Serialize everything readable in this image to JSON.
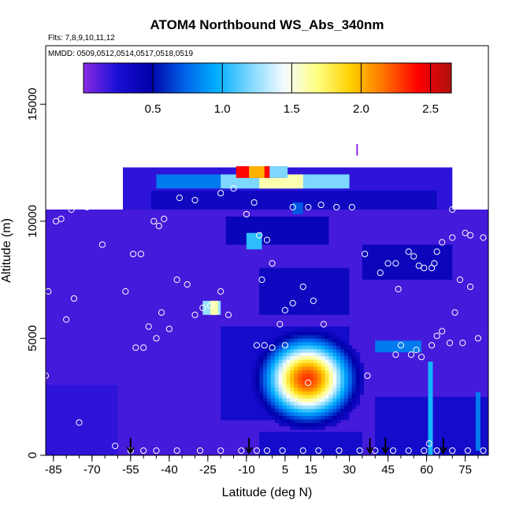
{
  "chart_data": {
    "type": "heatmap",
    "title": "ATOM4 Northbound WS_Abs_340nm",
    "subtitle_flights": "Flts: 7,8,9,10,11,12",
    "subtitle_dates": "MMDD: 0509,0512,0514,0517,0518,0519",
    "xlabel": "Latitude (deg N)",
    "ylabel": "Altitude (m)",
    "xlim": [
      -88,
      84
    ],
    "ylim": [
      0,
      17500
    ],
    "x_ticks": [
      -85,
      -70,
      -55,
      -40,
      -25,
      -10,
      5,
      15,
      30,
      45,
      60,
      75
    ],
    "y_ticks": [
      0,
      5000,
      10000,
      15000
    ],
    "colorbar": {
      "range": [
        0,
        2.65
      ],
      "ticks": [
        0.5,
        1.0,
        1.5,
        2.0,
        2.5
      ],
      "tick_labels": [
        "0.5",
        "1.0",
        "1.5",
        "2.0",
        "2.5"
      ],
      "colors": [
        "#8a2be2",
        "#1a0fd6",
        "#0000a8",
        "#0060e8",
        "#00b0ff",
        "#80d8ff",
        "#f4fbff",
        "#ffff80",
        "#ffd000",
        "#ff7000",
        "#ff0000",
        "#b01010"
      ]
    },
    "regions": [
      {
        "lat": [
          -88,
          84
        ],
        "alt": [
          0,
          10500
        ],
        "value": 0.15
      },
      {
        "lat": [
          -58,
          70
        ],
        "alt": [
          10500,
          12300
        ],
        "value": 0.2
      },
      {
        "lat": [
          -47,
          64
        ],
        "alt": [
          10500,
          11300
        ],
        "value": 0.35
      },
      {
        "lat": [
          -18,
          22
        ],
        "alt": [
          9000,
          10200
        ],
        "value": 0.4
      },
      {
        "lat": [
          -5,
          30
        ],
        "alt": [
          6000,
          8000
        ],
        "value": 0.35
      },
      {
        "lat": [
          35,
          70
        ],
        "alt": [
          7500,
          9000
        ],
        "value": 0.38
      },
      {
        "lat": [
          -5,
          35
        ],
        "alt": [
          0,
          1000
        ],
        "value": 0.3
      },
      {
        "lat": [
          40,
          84
        ],
        "alt": [
          0,
          2500
        ],
        "value": 0.3
      },
      {
        "lat": [
          -20,
          30
        ],
        "alt": [
          1500,
          5500
        ],
        "value": 0.3
      },
      {
        "lat": [
          -88,
          -60
        ],
        "alt": [
          0,
          3000
        ],
        "value": 0.2
      }
    ],
    "features": [
      {
        "lat": [
          -45,
          30
        ],
        "alt": [
          11400,
          12000
        ],
        "value": 0.8
      },
      {
        "lat": [
          -20,
          30
        ],
        "alt": [
          11400,
          12000
        ],
        "value": 1.2
      },
      {
        "lat": [
          -5,
          12
        ],
        "alt": [
          11400,
          12000
        ],
        "value": 1.6
      },
      {
        "lat": [
          -14,
          5
        ],
        "alt": [
          11850,
          12350
        ],
        "value": 2.4
      },
      {
        "lat": [
          -9,
          -3
        ],
        "alt": [
          11850,
          12350
        ],
        "value": 2.0
      },
      {
        "lat": [
          -1,
          6
        ],
        "alt": [
          11850,
          12350
        ],
        "value": 1.2
      },
      {
        "lat": [
          -10,
          -4
        ],
        "alt": [
          8800,
          9500
        ],
        "value": 1.05
      },
      {
        "lat": [
          -27,
          -20
        ],
        "alt": [
          6000,
          6600
        ],
        "value": 1.25
      },
      {
        "lat": [
          -24,
          -21
        ],
        "alt": [
          6000,
          6600
        ],
        "value": 1.6
      },
      {
        "lat": [
          40,
          58
        ],
        "alt": [
          4400,
          4900
        ],
        "value": 0.8
      },
      {
        "lat": [
          8,
          12
        ],
        "alt": [
          10300,
          10800
        ],
        "value": 0.7
      }
    ],
    "blob": {
      "lat": 13,
      "alt": 3200,
      "sx": 11,
      "sy": 1100,
      "peak": 2.3
    },
    "vertical_streaks": [
      {
        "lat": 61.5,
        "alt": [
          0,
          4000
        ],
        "value": 1.0
      },
      {
        "lat": 80,
        "alt": [
          200,
          2700
        ],
        "value": 0.8
      }
    ],
    "flight_points": [
      [
        -87,
        7000
      ],
      [
        -84,
        10000
      ],
      [
        -82,
        10100
      ],
      [
        -88,
        3400
      ],
      [
        -80,
        5800
      ],
      [
        -77,
        6700
      ],
      [
        -75,
        1400
      ],
      [
        -78,
        10500
      ],
      [
        -72,
        10600
      ],
      [
        -67,
        11100
      ],
      [
        -64,
        11300
      ],
      [
        -60,
        11400
      ],
      [
        -66,
        9000
      ],
      [
        -57,
        7000
      ],
      [
        -54,
        8600
      ],
      [
        -51,
        8600
      ],
      [
        -53,
        4600
      ],
      [
        -50,
        4600
      ],
      [
        -48,
        5500
      ],
      [
        -45,
        5000
      ],
      [
        -43,
        6100
      ],
      [
        -40,
        5400
      ],
      [
        -37,
        7500
      ],
      [
        -33,
        7300
      ],
      [
        -30,
        6000
      ],
      [
        -27,
        6300
      ],
      [
        -24,
        6400
      ],
      [
        -20,
        7000
      ],
      [
        -17,
        6000
      ],
      [
        -44,
        9800
      ],
      [
        -42,
        10100
      ],
      [
        -46,
        10000
      ],
      [
        -36,
        11000
      ],
      [
        -30,
        10900
      ],
      [
        -20,
        11200
      ],
      [
        -15,
        11400
      ],
      [
        -10,
        10300
      ],
      [
        -7,
        10800
      ],
      [
        -5,
        9400
      ],
      [
        -2,
        9200
      ],
      [
        0,
        8200
      ],
      [
        -4,
        7500
      ],
      [
        -6,
        4700
      ],
      [
        -3,
        4700
      ],
      [
        0,
        4600
      ],
      [
        3,
        5600
      ],
      [
        5,
        6200
      ],
      [
        8,
        6500
      ],
      [
        12,
        7200
      ],
      [
        16,
        6600
      ],
      [
        20,
        5600
      ],
      [
        8,
        10600
      ],
      [
        14,
        10600
      ],
      [
        19,
        10700
      ],
      [
        25,
        10600
      ],
      [
        31,
        10600
      ],
      [
        36,
        8600
      ],
      [
        42,
        7800
      ],
      [
        45,
        8200
      ],
      [
        48,
        8200
      ],
      [
        49,
        7100
      ],
      [
        53,
        8700
      ],
      [
        55,
        8500
      ],
      [
        57,
        8100
      ],
      [
        59,
        8000
      ],
      [
        62,
        8000
      ],
      [
        63,
        8200
      ],
      [
        64,
        8700
      ],
      [
        66,
        9100
      ],
      [
        70,
        9300
      ],
      [
        75,
        9500
      ],
      [
        77,
        9400
      ],
      [
        82,
        9300
      ],
      [
        70,
        10500
      ],
      [
        72,
        10900
      ],
      [
        74,
        10800
      ],
      [
        73,
        7500
      ],
      [
        77,
        7200
      ],
      [
        80,
        5000
      ],
      [
        50,
        4700
      ],
      [
        48,
        4300
      ],
      [
        54,
        4300
      ],
      [
        56,
        4500
      ],
      [
        58,
        4200
      ],
      [
        62,
        4700
      ],
      [
        64,
        5100
      ],
      [
        66,
        5300
      ],
      [
        69,
        4800
      ],
      [
        71,
        6100
      ],
      [
        74,
        4800
      ],
      [
        37,
        3400
      ],
      [
        14,
        3100
      ],
      [
        5,
        4700
      ],
      [
        -55,
        200
      ],
      [
        -50,
        200
      ],
      [
        -45,
        200
      ],
      [
        -37,
        200
      ],
      [
        -28,
        200
      ],
      [
        -20,
        200
      ],
      [
        -12,
        200
      ],
      [
        -6,
        200
      ],
      [
        -2,
        200
      ],
      [
        4,
        200
      ],
      [
        12,
        200
      ],
      [
        18,
        200
      ],
      [
        26,
        200
      ],
      [
        34,
        200
      ],
      [
        40,
        200
      ],
      [
        47,
        200
      ],
      [
        53,
        200
      ],
      [
        59,
        200
      ],
      [
        61,
        500
      ],
      [
        64,
        200
      ],
      [
        70,
        200
      ],
      [
        76,
        200
      ],
      [
        82,
        200
      ],
      [
        -61,
        400
      ]
    ],
    "spike": {
      "lat": 33,
      "alt": [
        12800,
        13300
      ]
    },
    "arrows_lat": [
      -55,
      -9,
      38,
      44,
      66.5
    ]
  }
}
